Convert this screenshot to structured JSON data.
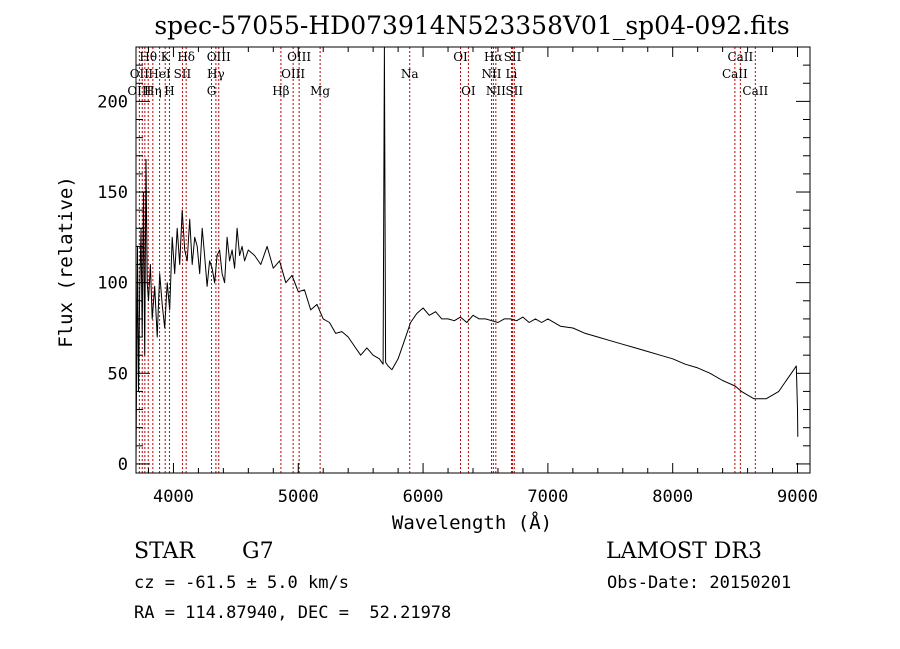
{
  "chart_data": {
    "type": "line",
    "title": "spec-57055-HD073914N523358V01_sp04-092.fits",
    "xlabel": "Wavelength (Å)",
    "ylabel": "Flux (relative)",
    "xlim": [
      3700,
      9100
    ],
    "ylim": [
      -5,
      230
    ],
    "xticks": [
      4000,
      5000,
      6000,
      7000,
      8000,
      9000
    ],
    "xtick_labels": [
      "4000",
      "5000",
      "6000",
      "7000",
      "8000",
      "9000"
    ],
    "yticks": [
      0,
      50,
      100,
      150,
      200
    ],
    "ytick_labels": [
      "0",
      "50",
      "100",
      "150",
      "200"
    ],
    "x_minor_step": 200,
    "y_minor_step": 10,
    "grid": false,
    "series": [
      {
        "name": "Flux",
        "x": [
          3700,
          3712,
          3720,
          3730,
          3740,
          3750,
          3760,
          3770,
          3780,
          3790,
          3800,
          3815,
          3830,
          3850,
          3870,
          3890,
          3910,
          3930,
          3950,
          3970,
          3990,
          4010,
          4030,
          4050,
          4070,
          4090,
          4110,
          4130,
          4150,
          4170,
          4190,
          4210,
          4230,
          4250,
          4270,
          4290,
          4310,
          4330,
          4350,
          4370,
          4390,
          4410,
          4430,
          4450,
          4470,
          4490,
          4510,
          4530,
          4550,
          4570,
          4600,
          4650,
          4700,
          4750,
          4800,
          4850,
          4900,
          4950,
          5000,
          5050,
          5100,
          5150,
          5200,
          5250,
          5300,
          5350,
          5400,
          5450,
          5500,
          5550,
          5600,
          5650,
          5680,
          5690,
          5700,
          5720,
          5750,
          5800,
          5850,
          5900,
          5950,
          6000,
          6050,
          6100,
          6150,
          6200,
          6250,
          6300,
          6350,
          6400,
          6450,
          6500,
          6550,
          6600,
          6650,
          6700,
          6750,
          6800,
          6850,
          6900,
          6950,
          7000,
          7100,
          7200,
          7300,
          7400,
          7500,
          7600,
          7700,
          7800,
          7900,
          8000,
          8100,
          8200,
          8300,
          8400,
          8500,
          8550,
          8600,
          8650,
          8700,
          8750,
          8800,
          8850,
          8900,
          8950,
          8990,
          9000,
          9002
        ],
        "values": [
          0,
          120,
          40,
          95,
          130,
          70,
          150,
          60,
          168,
          100,
          90,
          110,
          80,
          98,
          70,
          105,
          88,
          75,
          100,
          85,
          125,
          105,
          130,
          110,
          140,
          118,
          112,
          135,
          110,
          125,
          120,
          105,
          130,
          115,
          98,
          112,
          108,
          100,
          115,
          118,
          105,
          100,
          125,
          112,
          118,
          108,
          130,
          115,
          120,
          112,
          118,
          115,
          110,
          120,
          108,
          112,
          100,
          104,
          95,
          96,
          85,
          88,
          80,
          78,
          72,
          73,
          70,
          65,
          60,
          64,
          60,
          58,
          55,
          240,
          56,
          54,
          52,
          58,
          68,
          78,
          83,
          86,
          82,
          84,
          80,
          80,
          79,
          81,
          78,
          82,
          80,
          80,
          79,
          78,
          80,
          80,
          79,
          81,
          78,
          80,
          78,
          80,
          76,
          75,
          72,
          70,
          68,
          66,
          64,
          62,
          60,
          58,
          55,
          53,
          50,
          46,
          43,
          40,
          38,
          36,
          36,
          36,
          38,
          40,
          45,
          50,
          54,
          30,
          15
        ]
      }
    ],
    "line_labels": [
      {
        "label": "Hθ",
        "row": 1,
        "x": 3798
      },
      {
        "label": "K",
        "row": 1,
        "x": 3934
      },
      {
        "label": "Hδ",
        "row": 1,
        "x": 4102
      },
      {
        "label": "OIII",
        "row": 1,
        "x": 4363
      },
      {
        "label": "OIII",
        "row": 1,
        "x": 5007
      },
      {
        "label": "OI",
        "row": 1,
        "x": 6300
      },
      {
        "label": "Hα",
        "row": 1,
        "x": 6563
      },
      {
        "label": "SII",
        "row": 1,
        "x": 6717
      },
      {
        "label": "CaII",
        "row": 1,
        "x": 8542
      },
      {
        "label": "OII",
        "row": 2,
        "x": 3727
      },
      {
        "label": "HeI",
        "row": 2,
        "x": 3889
      },
      {
        "label": "SII",
        "row": 2,
        "x": 4072
      },
      {
        "label": "Hγ",
        "row": 2,
        "x": 4340
      },
      {
        "label": "OIII",
        "row": 2,
        "x": 4959
      },
      {
        "label": "Na",
        "row": 2,
        "x": 5893
      },
      {
        "label": "NII",
        "row": 2,
        "x": 6548
      },
      {
        "label": "Li",
        "row": 2,
        "x": 6708
      },
      {
        "label": "CaII",
        "row": 2,
        "x": 8498
      },
      {
        "label": "OIII",
        "row": 3,
        "x": 3727
      },
      {
        "label": "Hη",
        "row": 3,
        "x": 3835
      },
      {
        "label": "H",
        "row": 3,
        "x": 3968
      },
      {
        "label": "G",
        "row": 3,
        "x": 4305
      },
      {
        "label": "Hβ",
        "row": 3,
        "x": 4861
      },
      {
        "label": "Mg",
        "row": 3,
        "x": 5175
      },
      {
        "label": "OI",
        "row": 3,
        "x": 6363
      },
      {
        "label": "NII",
        "row": 3,
        "x": 6583
      },
      {
        "label": "SII",
        "row": 3,
        "x": 6731
      },
      {
        "label": "CaII",
        "row": 3,
        "x": 8662
      }
    ],
    "line_marker_x": [
      3727,
      3750,
      3771,
      3798,
      3835,
      3889,
      3934,
      3968,
      4072,
      4102,
      4305,
      4340,
      4363,
      4861,
      4959,
      5007,
      5175,
      5893,
      6300,
      6363,
      6548,
      6563,
      6583,
      6708,
      6717,
      6731,
      8498,
      8542,
      8662
    ],
    "marker_color": "#c00000"
  },
  "info": {
    "object_class": "STAR",
    "subclass": "G7",
    "survey": "LAMOST DR3",
    "redshift": "cz = -61.5 ± 5.0 km/s",
    "obs_date": "Obs-Date: 20150201",
    "coords": "RA = 114.87940, DEC =  52.21978"
  }
}
